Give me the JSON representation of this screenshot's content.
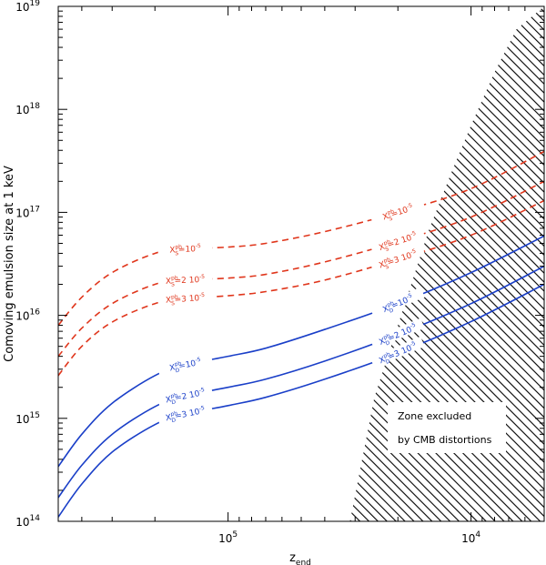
{
  "chart_data": {
    "type": "line",
    "title": "",
    "xlabel": "z",
    "xlabel_sub": "end",
    "ylabel": "Comoving emulsion size at 1 keV",
    "xscale": "log",
    "xreversed": true,
    "yscale": "log",
    "xlim": [
      500000,
      5000
    ],
    "ylim": [
      100000000000000.0,
      1e+19
    ],
    "x_ticks": [
      {
        "value": 100000,
        "base": "10",
        "exp": "5"
      },
      {
        "value": 10000,
        "base": "10",
        "exp": "4"
      }
    ],
    "y_ticks": [
      {
        "value": 100000000000000.0,
        "base": "10",
        "exp": "14"
      },
      {
        "value": 1000000000000000.0,
        "base": "10",
        "exp": "15"
      },
      {
        "value": 1e+16,
        "base": "10",
        "exp": "16"
      },
      {
        "value": 1e+17,
        "base": "10",
        "exp": "17"
      },
      {
        "value": 1e+18,
        "base": "10",
        "exp": "18"
      },
      {
        "value": 1e+19,
        "base": "10",
        "exp": "19"
      }
    ],
    "colors": {
      "blue": "#1a3fc8",
      "red": "#e0361c",
      "hatch": "#000000"
    },
    "series": [
      {
        "name": "S_red_1",
        "color": "red",
        "dash": true,
        "label_main": "X",
        "label_sub": "S",
        "label_sup": "ph",
        "label_rest": "=10",
        "label_exp": "-5",
        "x": [
          500000,
          400000,
          300000,
          200000,
          150000,
          100000,
          70000,
          40000,
          20000,
          10000,
          5000
        ],
        "y": [
          8000000000000000.0,
          1.5e+16,
          2.6e+16,
          4e+16,
          4.4e+16,
          4.6e+16,
          5e+16,
          6.5e+16,
          1e+17,
          1.7e+17,
          3.9e+17
        ]
      },
      {
        "name": "S_red_2",
        "color": "red",
        "dash": true,
        "label_main": "X",
        "label_sub": "S",
        "label_sup": "ph",
        "label_rest": "=2 10",
        "label_exp": "-5",
        "x": [
          500000,
          400000,
          300000,
          200000,
          150000,
          100000,
          70000,
          40000,
          20000,
          10000,
          5000
        ],
        "y": [
          4000000000000000.0,
          7500000000000000.0,
          1.3e+16,
          2e+16,
          2.2e+16,
          2.3e+16,
          2.5e+16,
          3.3e+16,
          5.2e+16,
          9e+16,
          2e+17
        ]
      },
      {
        "name": "S_red_3",
        "color": "red",
        "dash": true,
        "label_main": "X",
        "label_sub": "S",
        "label_sup": "ph",
        "label_rest": "=3 10",
        "label_exp": "-5",
        "x": [
          500000,
          400000,
          300000,
          200000,
          150000,
          100000,
          70000,
          40000,
          20000,
          10000,
          5000
        ],
        "y": [
          2600000000000000.0,
          5000000000000000.0,
          8600000000000000.0,
          1.3e+16,
          1.45e+16,
          1.55e+16,
          1.7e+16,
          2.2e+16,
          3.5e+16,
          6e+16,
          1.3e+17
        ]
      },
      {
        "name": "D_blue_1",
        "color": "blue",
        "dash": false,
        "label_main": "X",
        "label_sub": "D",
        "label_sup": "ph",
        "label_rest": "=10",
        "label_exp": "-5",
        "x": [
          500000,
          400000,
          300000,
          200000,
          150000,
          100000,
          70000,
          40000,
          20000,
          10000,
          5000
        ],
        "y": [
          340000000000000.0,
          700000000000000.0,
          1400000000000000.0,
          2600000000000000.0,
          3300000000000000.0,
          4000000000000000.0,
          4800000000000000.0,
          7300000000000000.0,
          1.3e+16,
          2.6e+16,
          5.9e+16
        ]
      },
      {
        "name": "D_blue_2",
        "color": "blue",
        "dash": false,
        "label_main": "X",
        "label_sub": "D",
        "label_sup": "ph",
        "label_rest": "=2 10",
        "label_exp": "-5",
        "x": [
          500000,
          400000,
          300000,
          200000,
          150000,
          100000,
          70000,
          40000,
          20000,
          10000,
          5000
        ],
        "y": [
          170000000000000.0,
          350000000000000.0,
          700000000000000.0,
          1300000000000000.0,
          1650000000000000.0,
          2000000000000000.0,
          2400000000000000.0,
          3600000000000000.0,
          6500000000000000.0,
          1.3e+16,
          3e+16
        ]
      },
      {
        "name": "D_blue_3",
        "color": "blue",
        "dash": false,
        "label_main": "X",
        "label_sub": "D",
        "label_sup": "ph",
        "label_rest": "=3 10",
        "label_exp": "-5",
        "x": [
          500000,
          400000,
          300000,
          200000,
          150000,
          100000,
          70000,
          40000,
          20000,
          10000,
          5000
        ],
        "y": [
          110000000000000.0,
          230000000000000.0,
          470000000000000.0,
          870000000000000.0,
          1100000000000000.0,
          1330000000000000.0,
          1600000000000000.0,
          2400000000000000.0,
          4300000000000000.0,
          8700000000000000.0,
          2e+16
        ]
      }
    ],
    "excluded_zone": {
      "label_line1": "Zone excluded",
      "label_line2": "by CMB distortions",
      "boundary_x": [
        31500,
        25000,
        20000,
        15000,
        12000,
        10000,
        8000,
        6500,
        5000
      ],
      "boundary_y": [
        100000000000000.0,
        1600000000000000.0,
        8000000000000000.0,
        6.5e+16,
        2.5e+17,
        7e+17,
        2.3e+18,
        6e+18,
        1e+19
      ]
    }
  }
}
